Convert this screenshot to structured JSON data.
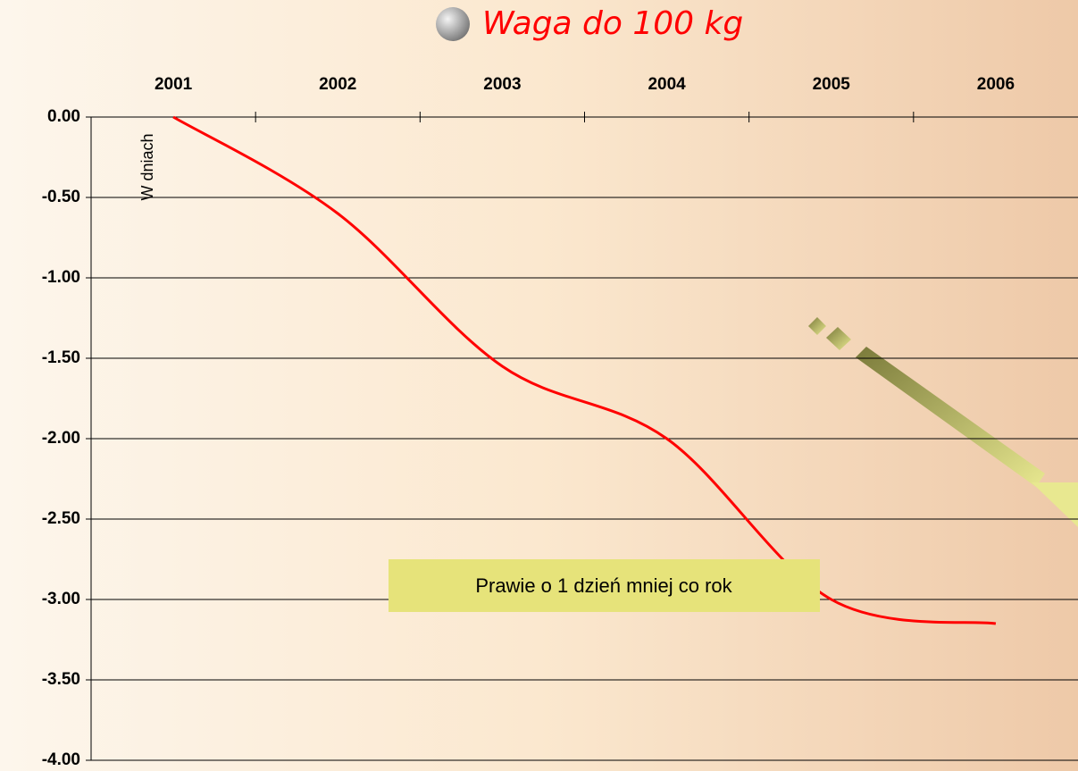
{
  "chart_data": {
    "type": "line",
    "title": "Waga do 100 kg",
    "y_label": "W dniach",
    "annotation": "Prawie o 1 dzień mniej co rok",
    "categories": [
      "2001",
      "2002",
      "2003",
      "2004",
      "2005",
      "2006"
    ],
    "series": [
      {
        "name": "Waga do 100 kg",
        "color": "#ff0000",
        "values": [
          0,
          -0.6,
          -1.55,
          -2.0,
          -3.0,
          -3.15
        ]
      }
    ],
    "ylim": [
      -4,
      0
    ],
    "yticks": [
      {
        "value": 0,
        "label": "0.00"
      },
      {
        "value": -0.5,
        "label": "-0.50"
      },
      {
        "value": -1,
        "label": "-1.00"
      },
      {
        "value": -1.5,
        "label": "-1.50"
      },
      {
        "value": -2,
        "label": "-2.00"
      },
      {
        "value": -2.5,
        "label": "-2.50"
      },
      {
        "value": -3,
        "label": "-3.00"
      },
      {
        "value": -3.5,
        "label": "-3.50"
      },
      {
        "value": -4,
        "label": "-4.00"
      }
    ],
    "grid": true
  }
}
